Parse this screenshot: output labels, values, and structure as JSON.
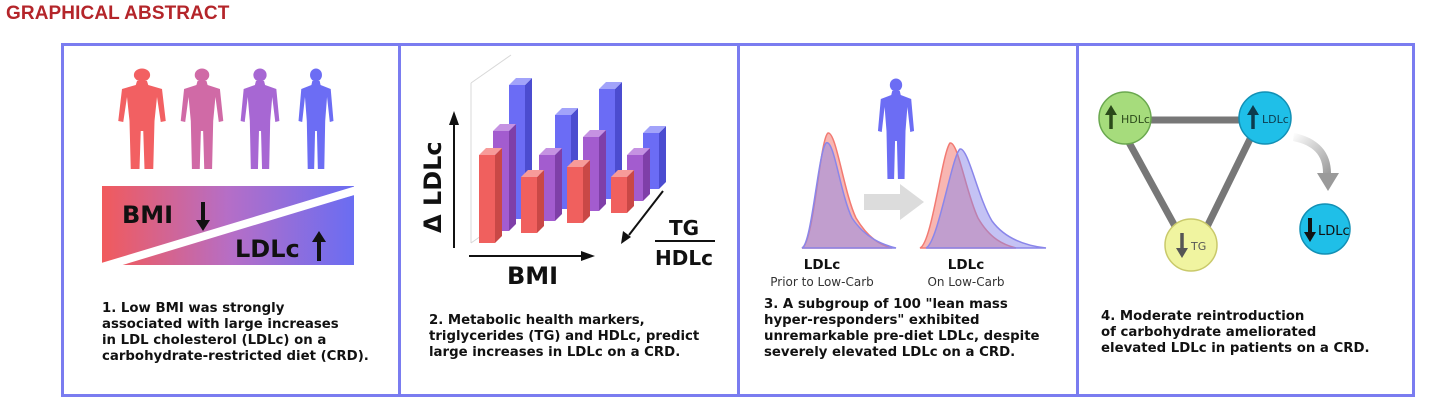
{
  "header": {
    "title": "GRAPHICAL ABSTRACT"
  },
  "panel1": {
    "bmi_label": "BMI",
    "ldlc_label": "LDLc",
    "caption_lines": [
      "1. Low BMI was strongly",
      "associated with large increases",
      "in LDL cholesterol (LDLc) on a",
      "carbohydrate-restricted diet (CRD)."
    ]
  },
  "panel2": {
    "y_axis_label": "Δ LDLc",
    "x_axis_label": "BMI",
    "z_axis_numerator": "TG",
    "z_axis_denominator": "HDLc",
    "caption_lines": [
      "2. Metabolic health markers,",
      "triglycerides (TG) and HDLc, predict",
      "large increases in LDLc on a CRD."
    ]
  },
  "panel3": {
    "left_plot_title": "LDLc",
    "left_plot_subtitle": "Prior to Low-Carb",
    "right_plot_title": "LDLc",
    "right_plot_subtitle": "On Low-Carb",
    "caption_lines": [
      "3. A subgroup of 100 \"lean mass",
      "hyper-responders\" exhibited",
      "unremarkable pre-diet LDLc, despite",
      "severely elevated LDLc on a CRD."
    ]
  },
  "panel4": {
    "node_hdlc": "HDLc",
    "node_ldlc": "LDLc",
    "node_tg": "TG",
    "node_ldlc_result": "LDLc",
    "colors": {
      "hdlc": "#a6dc7c",
      "ldlc": "#1fbfe8",
      "tg": "#f0f4a0"
    },
    "caption_lines": [
      "4. Moderate reintroduction",
      "of carbohydrate ameliorated",
      "elevated LDLc in patients on a CRD."
    ]
  },
  "colors": {
    "frame": "#7a7cf0",
    "title": "#b4252a",
    "red": "#f0605e",
    "blue": "#6b6cf5",
    "purple": "#a35ccf"
  }
}
